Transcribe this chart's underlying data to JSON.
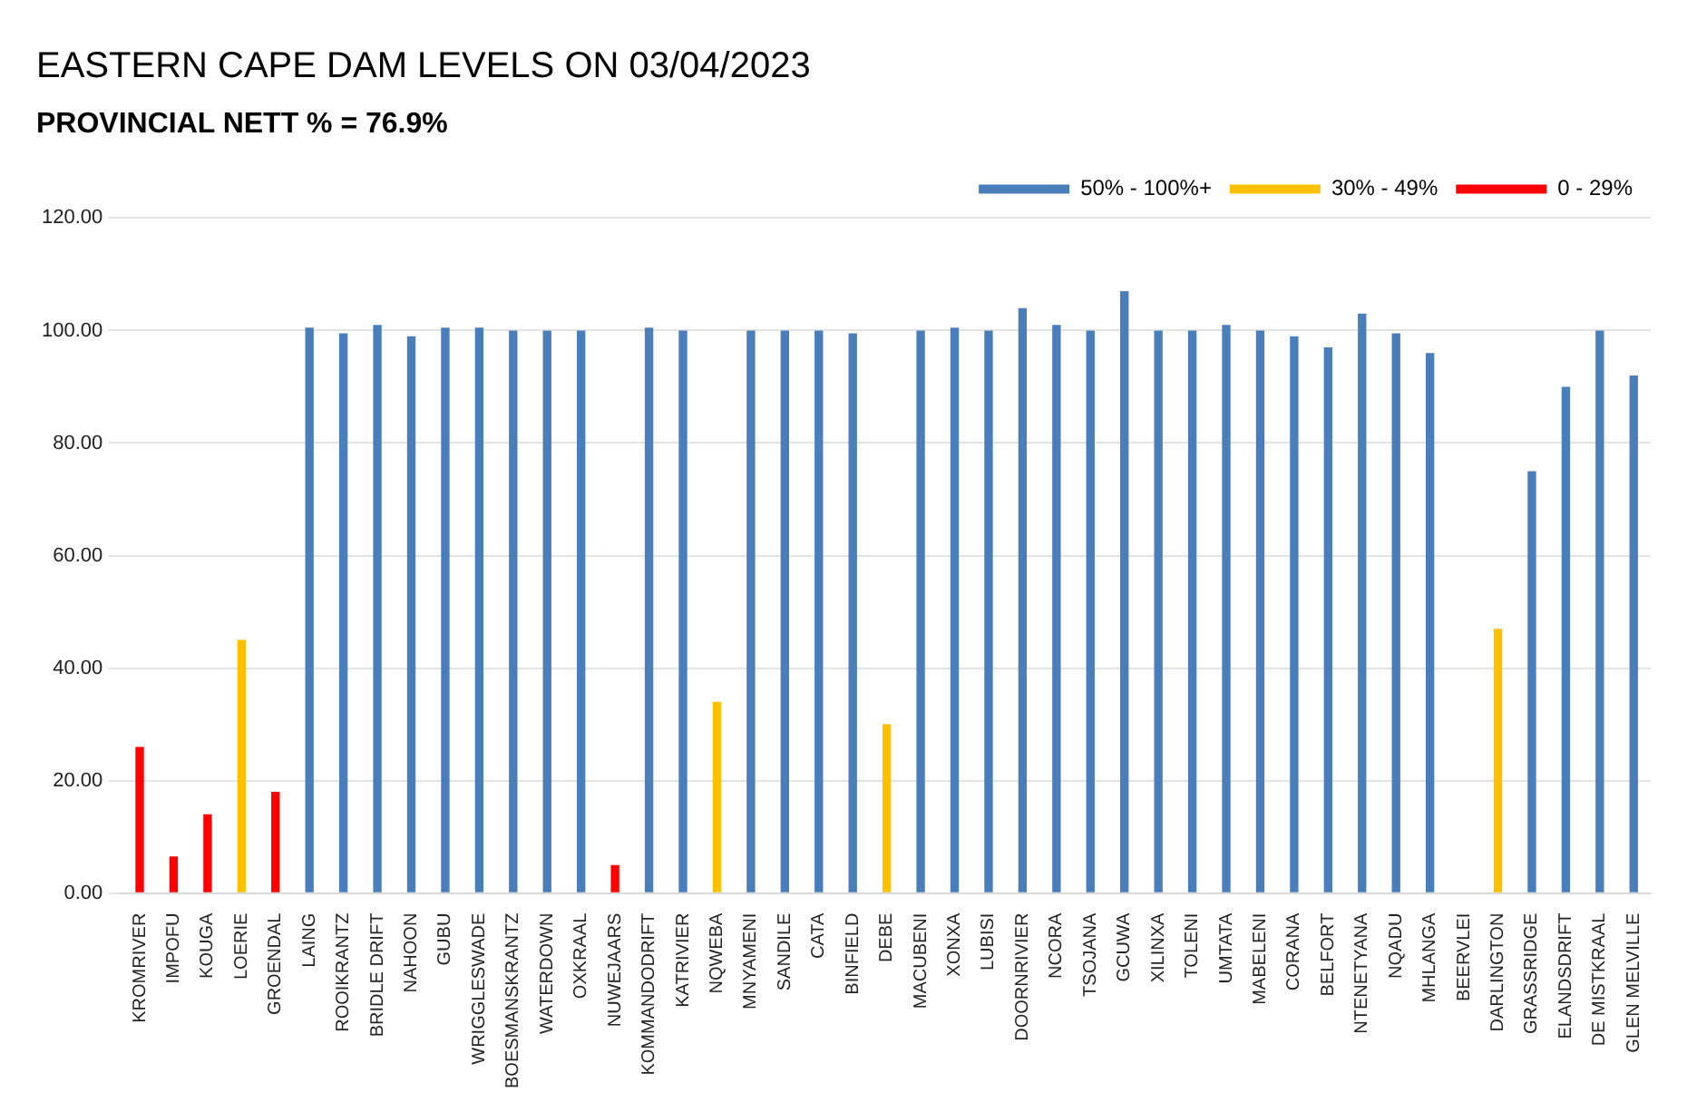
{
  "chart_data": {
    "type": "bar",
    "title": "EASTERN CAPE DAM LEVELS ON 03/04/2023",
    "subtitle": "PROVINCIAL NETT % = 76.9%",
    "categories": [
      "KROMRIVER",
      "IMPOFU",
      "KOUGA",
      "LOERIE",
      "GROENDAL",
      "LAING",
      "ROOIKRANTZ",
      "BRIDLE DRIFT",
      "NAHOON",
      "GUBU",
      "WRIGGLESWADE",
      "BOESMANSKRANTZ",
      "WATERDOWN",
      "OXKRAAL",
      "NUWEJAARS",
      "KOMMANDODRIFT",
      "KATRIVIER",
      "NQWEBA",
      "MNYAMENI",
      "SANDILE",
      "CATA",
      "BINFIELD",
      "DEBE",
      "MACUBENI",
      "XONXA",
      "LUBISI",
      "DOORNRIVIER",
      "NCORA",
      "TSOJANA",
      "GCUWA",
      "XILINXA",
      "TOLENI",
      "UMTATA",
      "MABELENI",
      "CORANA",
      "BELFORT",
      "NTENETYANA",
      "NQADU",
      "MHLANGA",
      "BEERVLEI",
      "DARLINGTON",
      "GRASSRIDGE",
      "ELANDSDRIFT",
      "DE MISTKRAAL",
      "GLEN MELVILLE"
    ],
    "series": [
      {
        "name": "50% - 100%+",
        "color": "#4a7ebb",
        "values": [
          null,
          null,
          null,
          null,
          null,
          100.5,
          99.5,
          101,
          99,
          100.5,
          100.5,
          100,
          100,
          100,
          null,
          100.5,
          100,
          null,
          100,
          100,
          100,
          99.5,
          null,
          100,
          100.5,
          100,
          104,
          101,
          100,
          107,
          100,
          100,
          101,
          100,
          99,
          97,
          103,
          99.5,
          96,
          null,
          null,
          75,
          90,
          100,
          92
        ]
      },
      {
        "name": "30% - 49%",
        "color": "#ffc000",
        "values": [
          null,
          null,
          null,
          45,
          null,
          null,
          null,
          null,
          null,
          null,
          null,
          null,
          null,
          null,
          null,
          null,
          null,
          34,
          null,
          null,
          null,
          null,
          30,
          null,
          null,
          null,
          null,
          null,
          null,
          null,
          null,
          null,
          null,
          null,
          null,
          null,
          null,
          null,
          null,
          null,
          47,
          null,
          null,
          null,
          null
        ]
      },
      {
        "name": "0 - 29%",
        "color": "#ff0000",
        "values": [
          26,
          6.5,
          14,
          null,
          18,
          null,
          null,
          null,
          null,
          null,
          null,
          null,
          null,
          null,
          5,
          null,
          null,
          null,
          null,
          null,
          null,
          null,
          null,
          null,
          null,
          null,
          null,
          null,
          null,
          null,
          null,
          null,
          null,
          null,
          null,
          null,
          null,
          null,
          null,
          0,
          null,
          null,
          null,
          null,
          null
        ]
      }
    ],
    "stacked": true,
    "ylim": [
      0,
      120
    ],
    "yticks": [
      {
        "value": 0,
        "label": "0.00"
      },
      {
        "value": 20,
        "label": "20.00"
      },
      {
        "value": 40,
        "label": "40.00"
      },
      {
        "value": 60,
        "label": "60.00"
      },
      {
        "value": 80,
        "label": "80.00"
      },
      {
        "value": 100,
        "label": "100.00"
      },
      {
        "value": 120,
        "label": "120.00"
      }
    ],
    "grid": "y",
    "legend": "top right"
  }
}
